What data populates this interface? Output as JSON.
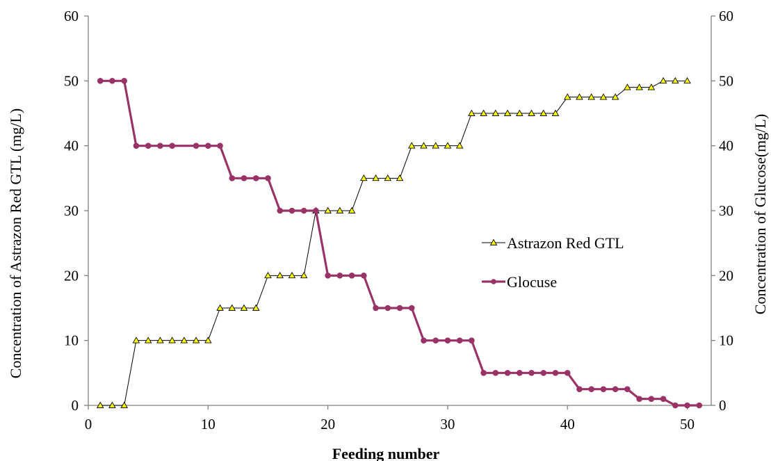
{
  "chart_data": {
    "type": "line",
    "x": [
      1,
      2,
      3,
      4,
      5,
      6,
      7,
      8,
      9,
      10,
      11,
      12,
      13,
      14,
      15,
      16,
      17,
      18,
      19,
      20,
      21,
      22,
      23,
      24,
      25,
      26,
      27,
      28,
      29,
      30,
      31,
      32,
      33,
      34,
      35,
      36,
      37,
      38,
      39,
      40,
      41,
      42,
      43,
      44,
      45,
      46,
      47,
      48,
      49,
      50,
      51
    ],
    "series": [
      {
        "name": "Astrazon Red GTL",
        "axis": "left",
        "color": "#000000",
        "marker": "triangle",
        "marker_color": "#ffff00",
        "x": [
          1,
          2,
          3,
          4,
          5,
          6,
          7,
          8,
          9,
          10,
          11,
          12,
          13,
          14,
          15,
          16,
          17,
          18,
          19,
          20,
          21,
          22,
          23,
          24,
          25,
          26,
          27,
          28,
          29,
          30,
          31,
          32,
          33,
          34,
          35,
          36,
          37,
          38,
          39,
          40,
          41,
          42,
          43,
          44,
          45,
          46,
          47,
          48,
          49,
          50
        ],
        "values": [
          0,
          0,
          0,
          10,
          10,
          10,
          10,
          10,
          10,
          10,
          15,
          15,
          15,
          15,
          20,
          20,
          20,
          20,
          30,
          30,
          30,
          30,
          35,
          35,
          35,
          35,
          40,
          40,
          40,
          40,
          40,
          45,
          45,
          45,
          45,
          45,
          45,
          45,
          45,
          47.5,
          47.5,
          47.5,
          47.5,
          47.5,
          49,
          49,
          49,
          50,
          50,
          50
        ]
      },
      {
        "name": "Glocuse",
        "axis": "right",
        "color": "#993366",
        "marker": "circle",
        "x": [
          1,
          2,
          3,
          4,
          5,
          6,
          7,
          9,
          10,
          11,
          12,
          13,
          14,
          15,
          16,
          17,
          18,
          19,
          20,
          21,
          22,
          23,
          24,
          25,
          26,
          27,
          28,
          29,
          30,
          31,
          32,
          33,
          34,
          35,
          36,
          37,
          38,
          39,
          40,
          41,
          42,
          43,
          44,
          45,
          46,
          47,
          48,
          49,
          50,
          51
        ],
        "values": [
          50,
          50,
          50,
          40,
          40,
          40,
          40,
          40,
          40,
          40,
          35,
          35,
          35,
          35,
          30,
          30,
          30,
          30,
          20,
          20,
          20,
          20,
          15,
          15,
          15,
          15,
          10,
          10,
          10,
          10,
          10,
          5,
          5,
          5,
          5,
          5,
          5,
          5,
          5,
          2.5,
          2.5,
          2.5,
          2.5,
          2.5,
          1,
          1,
          1,
          0,
          0,
          0
        ]
      }
    ],
    "xlabel": "Feeding number",
    "ylabel": "Concentration  of Astrazon Red GTL (mg/L)",
    "y2label": "Concentration  of Glucose(mg/L)",
    "xlim": [
      0,
      52
    ],
    "ylim": [
      0,
      60
    ],
    "y2lim": [
      0,
      60
    ],
    "xticks": [
      0,
      10,
      20,
      30,
      40,
      50
    ],
    "yticks": [
      0,
      10,
      20,
      30,
      40,
      50,
      60
    ],
    "y2ticks": [
      0,
      10,
      20,
      30,
      40,
      50,
      60
    ],
    "grid": false,
    "legend_position": "center-right"
  }
}
